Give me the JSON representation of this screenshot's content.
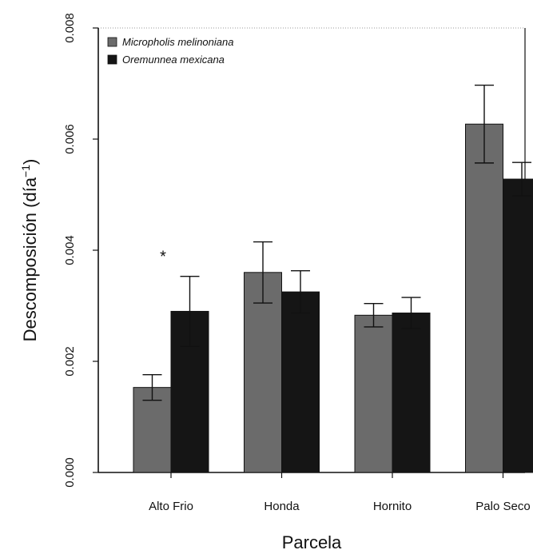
{
  "chart_data": {
    "type": "bar",
    "xlabel": "Parcela",
    "ylabel": "Descomposición (día",
    "ylabel_superscript": "−1",
    "ylabel_close": ")",
    "categories": [
      "Alto Frio",
      "Honda",
      "Hornito",
      "Palo Seco"
    ],
    "ylim": [
      0,
      0.008
    ],
    "yticks": [
      "0.000",
      "0.002",
      "0.004",
      "0.006",
      "0.008"
    ],
    "grid": false,
    "legend_position": "top-left",
    "series": [
      {
        "name": "Micropholis melinoniana",
        "color": "#6b6b6b",
        "values": [
          0.00153,
          0.0036,
          0.00283,
          0.00627
        ],
        "errors": [
          0.00023,
          0.00055,
          0.00021,
          0.0007
        ]
      },
      {
        "name": "Oremunnea mexicana",
        "color": "#151515",
        "values": [
          0.0029,
          0.00325,
          0.00287,
          0.00528
        ],
        "errors": [
          0.00063,
          0.00038,
          0.00028,
          0.0003
        ]
      }
    ],
    "annotations": [
      {
        "text": "*",
        "category": "Alto Frio",
        "series": 1
      }
    ]
  }
}
